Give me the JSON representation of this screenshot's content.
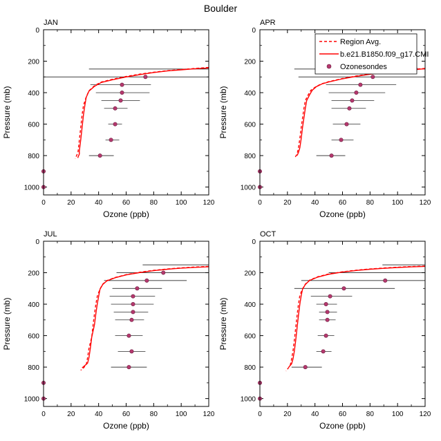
{
  "title": "Boulder",
  "colors": {
    "model": "#ff0000",
    "region": "#ff0000",
    "sonde": "#b5386e",
    "errorbar": "#000000",
    "axis": "#000000"
  },
  "legend": {
    "location": "top-right of APR panel",
    "entries": [
      "Region Avg.",
      "b.e21.B1850.f09_g17.CMI",
      "Ozonesondes"
    ]
  },
  "chart_data": [
    {
      "type": "line+scatter",
      "panel": "JAN",
      "xlabel": "Ozone (ppb)",
      "ylabel": "Pressure (mb)",
      "xlim": [
        0,
        120
      ],
      "ylim": [
        0,
        1050
      ],
      "y_inverted": true,
      "xticks": [
        0,
        20,
        40,
        60,
        80,
        100,
        120
      ],
      "yticks": [
        0,
        200,
        400,
        600,
        800,
        1000
      ],
      "model": {
        "name": "b.e21.B1850.f09_g17.CMI",
        "points": [
          [
            120,
            243
          ],
          [
            110,
            248
          ],
          [
            100,
            255
          ],
          [
            90,
            262
          ],
          [
            80,
            272
          ],
          [
            70,
            285
          ],
          [
            60,
            300
          ],
          [
            50,
            318
          ],
          [
            42,
            335
          ],
          [
            37,
            360
          ],
          [
            33,
            390
          ],
          [
            31,
            430
          ],
          [
            30,
            480
          ],
          [
            29,
            540
          ],
          [
            28,
            620
          ],
          [
            27,
            700
          ],
          [
            26,
            770
          ],
          [
            26,
            790
          ],
          [
            25,
            810
          ],
          [
            25,
            815
          ]
        ]
      },
      "region_avg": {
        "name": "Region Avg.",
        "points": [
          [
            120,
            240
          ],
          [
            110,
            246
          ],
          [
            100,
            253
          ],
          [
            90,
            260
          ],
          [
            80,
            270
          ],
          [
            70,
            282
          ],
          [
            60,
            297
          ],
          [
            50,
            315
          ],
          [
            42,
            332
          ],
          [
            37,
            356
          ],
          [
            33,
            388
          ],
          [
            31,
            428
          ],
          [
            29,
            480
          ],
          [
            28,
            540
          ],
          [
            27,
            620
          ],
          [
            26,
            700
          ],
          [
            25,
            780
          ],
          [
            24,
            800
          ],
          [
            23,
            820
          ]
        ]
      },
      "sondes": [
        {
          "p": 300,
          "o3": 74,
          "lo": 0,
          "hi": 120
        },
        {
          "p": 350,
          "o3": 57,
          "lo": 34,
          "hi": 78
        },
        {
          "p": 400,
          "o3": 57,
          "lo": 38,
          "hi": 77
        },
        {
          "p": 450,
          "o3": 56,
          "lo": 42,
          "hi": 70
        },
        {
          "p": 500,
          "o3": 52,
          "lo": 44,
          "hi": 61
        },
        {
          "p": 600,
          "o3": 52,
          "lo": 47,
          "hi": 57
        },
        {
          "p": 700,
          "o3": 49,
          "lo": 45,
          "hi": 55
        },
        {
          "p": 800,
          "o3": 41,
          "lo": 33,
          "hi": 51
        },
        {
          "p": 900,
          "o3": 0,
          "lo": 0,
          "hi": 0
        },
        {
          "p": 1000,
          "o3": 0,
          "lo": 0,
          "hi": 0
        }
      ],
      "sonde_top": {
        "p": 250,
        "o3": 120,
        "lo": 33,
        "hi": 120
      },
      "sonde_top2": {
        "p": 200,
        "o3": 120,
        "lo": 120,
        "hi": 120
      }
    },
    {
      "type": "line+scatter",
      "panel": "APR",
      "xlabel": "Ozone (ppb)",
      "ylabel": "Pressure (mb)",
      "xlim": [
        0,
        120
      ],
      "ylim": [
        0,
        1050
      ],
      "y_inverted": true,
      "xticks": [
        0,
        20,
        40,
        60,
        80,
        100,
        120
      ],
      "yticks": [
        0,
        200,
        400,
        600,
        800,
        1000
      ],
      "model": {
        "name": "b.e21.B1850.f09_g17.CMI",
        "points": [
          [
            120,
            248
          ],
          [
            110,
            255
          ],
          [
            100,
            262
          ],
          [
            90,
            272
          ],
          [
            80,
            283
          ],
          [
            70,
            296
          ],
          [
            60,
            312
          ],
          [
            50,
            332
          ],
          [
            45,
            345
          ],
          [
            41,
            362
          ],
          [
            38,
            385
          ],
          [
            36,
            415
          ],
          [
            34,
            450
          ],
          [
            33,
            500
          ],
          [
            32,
            560
          ],
          [
            31,
            620
          ],
          [
            30,
            690
          ],
          [
            29,
            750
          ],
          [
            28,
            780
          ],
          [
            27,
            800
          ]
        ]
      },
      "region_avg": {
        "name": "Region Avg.",
        "points": [
          [
            120,
            246
          ],
          [
            110,
            253
          ],
          [
            100,
            260
          ],
          [
            90,
            270
          ],
          [
            80,
            281
          ],
          [
            70,
            294
          ],
          [
            60,
            310
          ],
          [
            50,
            330
          ],
          [
            45,
            343
          ],
          [
            41,
            360
          ],
          [
            37,
            385
          ],
          [
            35,
            415
          ],
          [
            33,
            450
          ],
          [
            32,
            500
          ],
          [
            31,
            560
          ],
          [
            30,
            620
          ],
          [
            29,
            690
          ],
          [
            28,
            750
          ],
          [
            27,
            790
          ],
          [
            25,
            820
          ]
        ]
      },
      "sondes": [
        {
          "p": 250,
          "o3": 113,
          "lo": 25,
          "hi": 120
        },
        {
          "p": 300,
          "o3": 82,
          "lo": 28,
          "hi": 120
        },
        {
          "p": 350,
          "o3": 73,
          "lo": 48,
          "hi": 99
        },
        {
          "p": 400,
          "o3": 70,
          "lo": 50,
          "hi": 91
        },
        {
          "p": 450,
          "o3": 67,
          "lo": 52,
          "hi": 83
        },
        {
          "p": 500,
          "o3": 65,
          "lo": 52,
          "hi": 77
        },
        {
          "p": 600,
          "o3": 63,
          "lo": 53,
          "hi": 73
        },
        {
          "p": 700,
          "o3": 59,
          "lo": 52,
          "hi": 68
        },
        {
          "p": 800,
          "o3": 52,
          "lo": 41,
          "hi": 62
        },
        {
          "p": 900,
          "o3": 0,
          "lo": 0,
          "hi": 0
        },
        {
          "p": 1000,
          "o3": 0,
          "lo": 0,
          "hi": 0
        }
      ]
    },
    {
      "type": "line+scatter",
      "panel": "JUL",
      "xlabel": "Ozone (ppb)",
      "ylabel": "Pressure (mb)",
      "xlim": [
        0,
        120
      ],
      "ylim": [
        0,
        1050
      ],
      "y_inverted": true,
      "xticks": [
        0,
        20,
        40,
        60,
        80,
        100,
        120
      ],
      "yticks": [
        0,
        200,
        400,
        600,
        800,
        1000
      ],
      "model": {
        "name": "b.e21.B1850.f09_g17.CMI",
        "points": [
          [
            120,
            162
          ],
          [
            110,
            166
          ],
          [
            100,
            171
          ],
          [
            90,
            178
          ],
          [
            80,
            187
          ],
          [
            70,
            199
          ],
          [
            60,
            214
          ],
          [
            52,
            232
          ],
          [
            46,
            252
          ],
          [
            43,
            275
          ],
          [
            41,
            305
          ],
          [
            40,
            350
          ],
          [
            39,
            400
          ],
          [
            38,
            460
          ],
          [
            37,
            530
          ],
          [
            35,
            610
          ],
          [
            34,
            680
          ],
          [
            33,
            740
          ],
          [
            32,
            775
          ],
          [
            30,
            790
          ],
          [
            28,
            805
          ]
        ]
      },
      "region_avg": {
        "name": "Region Avg.",
        "points": [
          [
            120,
            160
          ],
          [
            110,
            164
          ],
          [
            100,
            169
          ],
          [
            90,
            176
          ],
          [
            80,
            185
          ],
          [
            70,
            197
          ],
          [
            60,
            212
          ],
          [
            52,
            230
          ],
          [
            46,
            250
          ],
          [
            43,
            273
          ],
          [
            41,
            303
          ],
          [
            39,
            350
          ],
          [
            38,
            400
          ],
          [
            37,
            460
          ],
          [
            36,
            530
          ],
          [
            35,
            610
          ],
          [
            33,
            680
          ],
          [
            32,
            740
          ],
          [
            31,
            785
          ],
          [
            29,
            805
          ],
          [
            27,
            820
          ]
        ]
      },
      "sondes": [
        {
          "p": 200,
          "o3": 87,
          "lo": 53,
          "hi": 120
        },
        {
          "p": 250,
          "o3": 75,
          "lo": 44,
          "hi": 104
        },
        {
          "p": 300,
          "o3": 68,
          "lo": 50,
          "hi": 86
        },
        {
          "p": 350,
          "o3": 65,
          "lo": 48,
          "hi": 81
        },
        {
          "p": 400,
          "o3": 65,
          "lo": 49,
          "hi": 80
        },
        {
          "p": 450,
          "o3": 65,
          "lo": 51,
          "hi": 76
        },
        {
          "p": 500,
          "o3": 64,
          "lo": 52,
          "hi": 73
        },
        {
          "p": 600,
          "o3": 62,
          "lo": 52,
          "hi": 72
        },
        {
          "p": 700,
          "o3": 64,
          "lo": 54,
          "hi": 74
        },
        {
          "p": 800,
          "o3": 62,
          "lo": 49,
          "hi": 75
        },
        {
          "p": 900,
          "o3": 0,
          "lo": 0,
          "hi": 0
        },
        {
          "p": 1000,
          "o3": 0,
          "lo": 0,
          "hi": 0
        }
      ],
      "sonde_top": {
        "p": 150,
        "o3": 120,
        "lo": 72,
        "hi": 120
      }
    },
    {
      "type": "line+scatter",
      "panel": "OCT",
      "xlabel": "Ozone (ppb)",
      "ylabel": "Pressure (mb)",
      "xlim": [
        0,
        120
      ],
      "ylim": [
        0,
        1050
      ],
      "y_inverted": true,
      "xticks": [
        0,
        20,
        40,
        60,
        80,
        100,
        120
      ],
      "yticks": [
        0,
        200,
        400,
        600,
        800,
        1000
      ],
      "model": {
        "name": "b.e21.B1850.f09_g17.CMI",
        "points": [
          [
            120,
            160
          ],
          [
            110,
            163
          ],
          [
            100,
            167
          ],
          [
            90,
            172
          ],
          [
            80,
            178
          ],
          [
            70,
            186
          ],
          [
            60,
            196
          ],
          [
            50,
            210
          ],
          [
            42,
            228
          ],
          [
            36,
            250
          ],
          [
            33,
            275
          ],
          [
            31,
            305
          ],
          [
            30,
            345
          ],
          [
            29,
            400
          ],
          [
            28,
            470
          ],
          [
            27,
            550
          ],
          [
            26,
            630
          ],
          [
            25,
            700
          ],
          [
            24,
            750
          ],
          [
            23,
            780
          ],
          [
            21,
            800
          ]
        ]
      },
      "region_avg": {
        "name": "Region Avg.",
        "points": [
          [
            120,
            158
          ],
          [
            110,
            161
          ],
          [
            100,
            165
          ],
          [
            90,
            170
          ],
          [
            80,
            176
          ],
          [
            70,
            184
          ],
          [
            60,
            194
          ],
          [
            50,
            208
          ],
          [
            42,
            226
          ],
          [
            36,
            248
          ],
          [
            33,
            273
          ],
          [
            31,
            303
          ],
          [
            29,
            343
          ],
          [
            28,
            400
          ],
          [
            27,
            470
          ],
          [
            26,
            550
          ],
          [
            25,
            630
          ],
          [
            24,
            700
          ],
          [
            23,
            750
          ],
          [
            22,
            790
          ],
          [
            19,
            825
          ]
        ]
      },
      "sondes": [
        {
          "p": 250,
          "o3": 91,
          "lo": 30,
          "hi": 120
        },
        {
          "p": 300,
          "o3": 61,
          "lo": 25,
          "hi": 98
        },
        {
          "p": 350,
          "o3": 51,
          "lo": 37,
          "hi": 67
        },
        {
          "p": 400,
          "o3": 48,
          "lo": 41,
          "hi": 56
        },
        {
          "p": 450,
          "o3": 49,
          "lo": 43,
          "hi": 56
        },
        {
          "p": 500,
          "o3": 49,
          "lo": 43,
          "hi": 55
        },
        {
          "p": 600,
          "o3": 48,
          "lo": 42,
          "hi": 54
        },
        {
          "p": 700,
          "o3": 46,
          "lo": 41,
          "hi": 52
        },
        {
          "p": 800,
          "o3": 33,
          "lo": 23,
          "hi": 45
        },
        {
          "p": 900,
          "o3": 0,
          "lo": 0,
          "hi": 0
        },
        {
          "p": 1000,
          "o3": 0,
          "lo": 0,
          "hi": 0
        }
      ],
      "sonde_top": {
        "p": 150,
        "o3": 120,
        "lo": 89,
        "hi": 120
      },
      "sonde_top2": {
        "p": 200,
        "o3": 120,
        "lo": 50,
        "hi": 120
      }
    }
  ]
}
